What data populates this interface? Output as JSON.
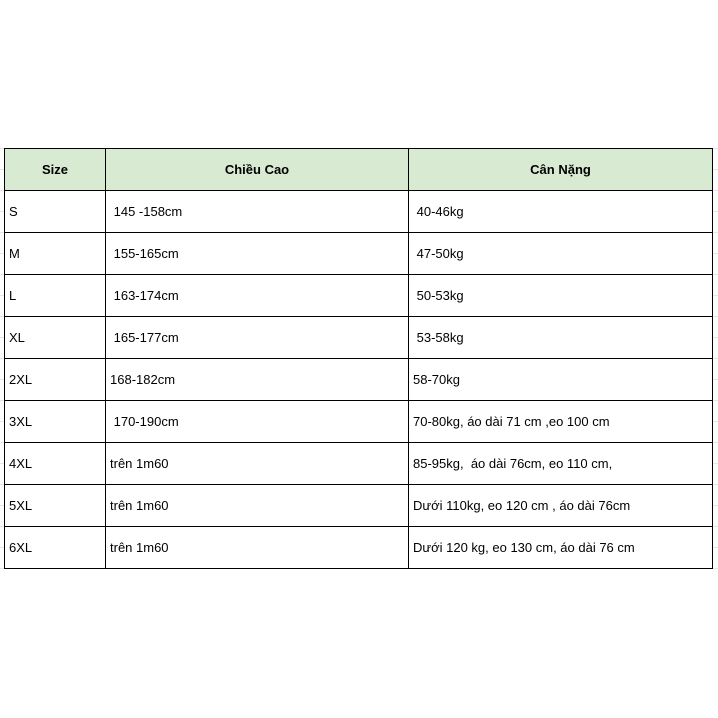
{
  "table": {
    "headers": [
      "Size",
      "Chiều Cao",
      "Cân Nặng"
    ],
    "header_color": "#d9ead3",
    "rows": [
      [
        "S",
        " 145 -158cm",
        " 40-46kg"
      ],
      [
        "M",
        " 155-165cm",
        " 47-50kg"
      ],
      [
        "L",
        " 163-174cm",
        " 50-53kg"
      ],
      [
        "XL",
        " 165-177cm",
        " 53-58kg"
      ],
      [
        "2XL",
        "168-182cm",
        "58-70kg"
      ],
      [
        "3XL",
        " 170-190cm",
        "70-80kg, áo dài 71 cm ,eo 100 cm"
      ],
      [
        "4XL",
        "trên 1m60",
        "85-95kg,  áo dài 76cm, eo 110 cm,"
      ],
      [
        "5XL",
        "trên 1m60",
        "Dưới 110kg, eo 120 cm , áo dài 76cm"
      ],
      [
        "6XL",
        "trên 1m60",
        "Dưới 120 kg, eo 130 cm, áo dài 76 cm"
      ]
    ]
  }
}
